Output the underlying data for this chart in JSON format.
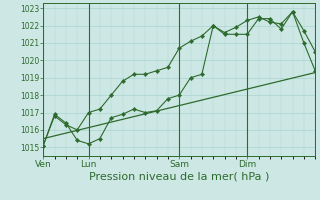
{
  "bg_color": "#cde8e4",
  "grid_color": "#a8d4ce",
  "line_color": "#2d6a2d",
  "marker_color": "#2d6a2d",
  "xlabel": "Pression niveau de la mer( hPa )",
  "xlabel_fontsize": 8,
  "ylim": [
    1014.5,
    1023.3
  ],
  "yticks": [
    1015,
    1016,
    1017,
    1018,
    1019,
    1020,
    1021,
    1022,
    1023
  ],
  "day_labels": [
    "Ven",
    "Lun",
    "Sam",
    "Dim"
  ],
  "day_positions": [
    0,
    48,
    144,
    216
  ],
  "xlim": [
    0,
    288
  ],
  "series1_x": [
    0,
    12,
    24,
    36,
    48,
    60,
    72,
    84,
    96,
    108,
    120,
    132,
    144,
    156,
    168,
    180,
    192,
    204,
    216,
    228,
    240,
    252,
    264,
    276,
    288
  ],
  "series1_y": [
    1015.1,
    1016.8,
    1016.3,
    1016.0,
    1017.0,
    1017.2,
    1018.0,
    1018.8,
    1019.2,
    1019.2,
    1019.4,
    1019.6,
    1020.7,
    1021.1,
    1021.4,
    1022.0,
    1021.6,
    1021.9,
    1022.3,
    1022.5,
    1022.2,
    1022.1,
    1022.8,
    1021.7,
    1020.5
  ],
  "series2_x": [
    0,
    12,
    24,
    36,
    48,
    60,
    72,
    84,
    96,
    108,
    120,
    132,
    144,
    156,
    168,
    180,
    192,
    204,
    216,
    228,
    240,
    252,
    264,
    276,
    288
  ],
  "series2_y": [
    1015.1,
    1016.9,
    1016.4,
    1015.4,
    1015.2,
    1015.5,
    1016.7,
    1016.9,
    1017.2,
    1017.0,
    1017.1,
    1017.8,
    1018.0,
    1019.0,
    1019.2,
    1022.0,
    1021.5,
    1021.5,
    1021.5,
    1022.4,
    1022.4,
    1021.8,
    1022.8,
    1021.0,
    1019.4
  ],
  "trend_x": [
    0,
    288
  ],
  "trend_y": [
    1015.5,
    1019.3
  ]
}
